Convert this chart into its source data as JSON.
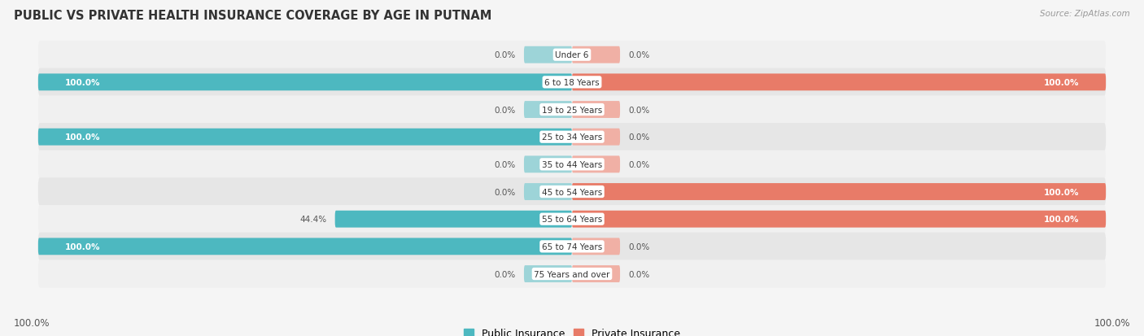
{
  "title": "PUBLIC VS PRIVATE HEALTH INSURANCE COVERAGE BY AGE IN PUTNAM",
  "source": "Source: ZipAtlas.com",
  "categories": [
    "Under 6",
    "6 to 18 Years",
    "19 to 25 Years",
    "25 to 34 Years",
    "35 to 44 Years",
    "45 to 54 Years",
    "55 to 64 Years",
    "65 to 74 Years",
    "75 Years and over"
  ],
  "public_values": [
    0.0,
    100.0,
    0.0,
    100.0,
    0.0,
    0.0,
    44.4,
    100.0,
    0.0
  ],
  "private_values": [
    0.0,
    100.0,
    0.0,
    0.0,
    0.0,
    100.0,
    100.0,
    0.0,
    0.0
  ],
  "public_color": "#4db8c0",
  "private_color": "#e87b68",
  "public_color_light": "#9dd4d8",
  "private_color_light": "#f0b0a5",
  "row_bg_colors": [
    "#f0f0f0",
    "#e6e6e6"
  ],
  "fig_bg_color": "#f5f5f5",
  "title_color": "#333333",
  "legend_labels": [
    "Public Insurance",
    "Private Insurance"
  ],
  "bar_height": 0.62,
  "stub_size": 9,
  "min_val": -100,
  "max_val": 100
}
